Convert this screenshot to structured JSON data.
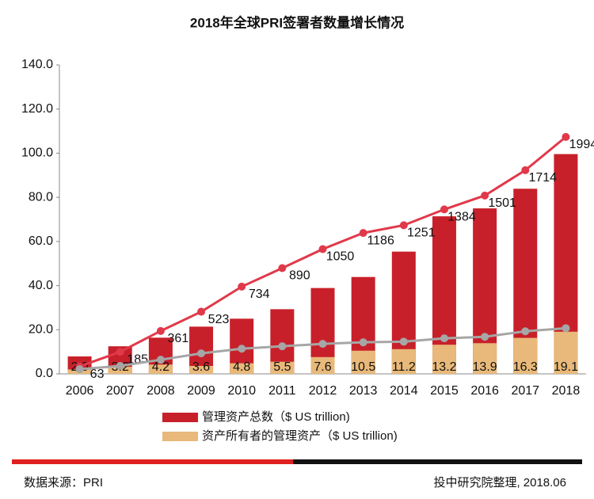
{
  "chart_data": {
    "type": "bar",
    "title": "2018年全球PRI签署者数量增长情况",
    "categories": [
      "2006",
      "2007",
      "2008",
      "2009",
      "2010",
      "2011",
      "2012",
      "2013",
      "2014",
      "2015",
      "2016",
      "2017",
      "2018"
    ],
    "series": [
      {
        "name": "管理资产总数（$ US trillion)",
        "color": "#c8202a",
        "values": [
          7.9,
          12.5,
          16.4,
          21.4,
          25,
          29.3,
          38.9,
          43.9,
          55.4,
          71.4,
          75,
          83.9,
          99.6
        ]
      },
      {
        "name": "资产所有者的管理资产（$ US trillion)",
        "color": "#e8b97a",
        "values": [
          2.0,
          3.2,
          4.2,
          3.6,
          4.8,
          5.5,
          7.6,
          10.5,
          11.2,
          13.2,
          13.9,
          16.3,
          19.1
        ],
        "value_labels": [
          "2.0",
          "3.2",
          "4.2",
          "3.6",
          "4.8",
          "5.5",
          "7.6",
          "10.5",
          "11.2",
          "13.2",
          "13.9",
          "16.3",
          "19.1"
        ]
      },
      {
        "type": "line",
        "axis": "y2",
        "color": "#e0394a",
        "values": [
          63,
          185,
          361,
          523,
          734,
          890,
          1050,
          1186,
          1251,
          1384,
          1501,
          1714,
          1994
        ],
        "show_labels": true
      },
      {
        "type": "line",
        "color": "#a6a6a6",
        "values": [
          2.1,
          3.6,
          6.4,
          9.3,
          11.4,
          12.5,
          13.6,
          14.3,
          14.6,
          16.1,
          16.8,
          19.3,
          20.7
        ]
      }
    ],
    "ylim": [
      0,
      140
    ],
    "yticks": [
      {
        "value": 0,
        "label": "0.0"
      },
      {
        "value": 20,
        "label": "20.0"
      },
      {
        "value": 40,
        "label": "40.0"
      },
      {
        "value": 60,
        "label": "60.0"
      },
      {
        "value": 80,
        "label": "80.0"
      },
      {
        "value": 100,
        "label": "100.0"
      },
      {
        "value": 120,
        "label": "120.0"
      },
      {
        "value": 140,
        "label": "140.0"
      }
    ],
    "y2lim": [
      0,
      2600
    ],
    "source": "数据来源：PRI",
    "credit": "投中研究院整理, 2018.06"
  }
}
